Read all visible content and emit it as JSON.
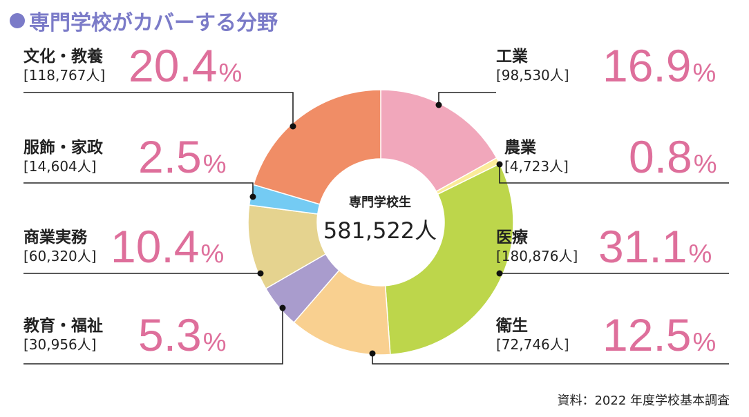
{
  "title": "専門学校がカバーする分野",
  "source": "資料：2022 年度学校基本調査",
  "chart_data": {
    "type": "pie",
    "center_title": "専門学校生",
    "center_total": "581,522人",
    "slices": [
      {
        "name": "工業",
        "count": "[98,530人]",
        "value": 16.9,
        "pct_text": "16.9",
        "color": "#f1a7bb"
      },
      {
        "name": "農業",
        "count": "[4,723人]",
        "value": 0.8,
        "pct_text": "0.8",
        "color": "#fbeb9a"
      },
      {
        "name": "医療",
        "count": "[180,876人]",
        "value": 31.1,
        "pct_text": "31.1",
        "color": "#bdd64b"
      },
      {
        "name": "衛生",
        "count": "[72,746人]",
        "value": 12.5,
        "pct_text": "12.5",
        "color": "#f9d090"
      },
      {
        "name": "教育・福祉",
        "count": "[30,956人]",
        "value": 5.3,
        "pct_text": "5.3",
        "color": "#a99ccd"
      },
      {
        "name": "商業実務",
        "count": "[60,320人]",
        "value": 10.4,
        "pct_text": "10.4",
        "color": "#e5d38f"
      },
      {
        "name": "服飾・家政",
        "count": "[14,604人]",
        "value": 2.5,
        "pct_text": "2.5",
        "color": "#74cbf3"
      },
      {
        "name": "文化・教養",
        "count": "[118,767人]",
        "value": 20.4,
        "pct_text": "20.4",
        "color": "#f08d66"
      }
    ],
    "percent_unit": "%"
  }
}
